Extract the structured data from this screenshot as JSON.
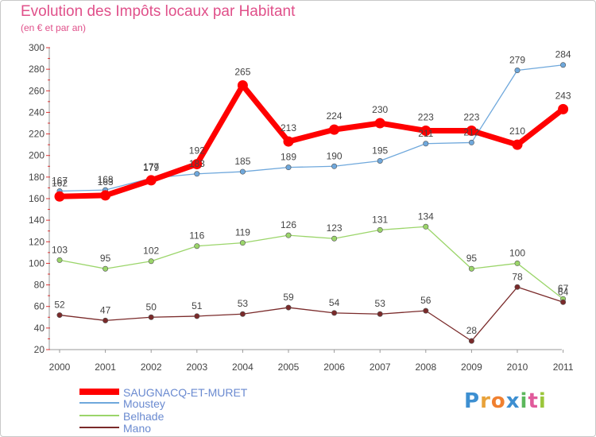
{
  "header": {
    "title": "Evolution des Impôts locaux par Habitant",
    "subtitle": "(en € et par an)"
  },
  "logo": {
    "text": "Proxiti",
    "colors": [
      "#3d8fd1",
      "#e8a23a",
      "#f08030",
      "#3d8fd1",
      "#5cb85c",
      "#e05a9b",
      "#9bc63b"
    ]
  },
  "chart_data": {
    "type": "line",
    "categories": [
      "2000",
      "2001",
      "2002",
      "2003",
      "2004",
      "2005",
      "2006",
      "2007",
      "2008",
      "2009",
      "2010",
      "2011"
    ],
    "ylim": [
      20,
      300
    ],
    "yticks": [
      20,
      40,
      60,
      80,
      100,
      120,
      140,
      160,
      180,
      200,
      220,
      240,
      260,
      280,
      300
    ],
    "grid": false,
    "legend_position": "bottom-left",
    "series": [
      {
        "name": "SAUGNACQ-ET-MURET",
        "color": "#ff0000",
        "bold": true,
        "values": [
          162,
          163,
          177,
          192,
          265,
          213,
          224,
          230,
          223,
          223,
          210,
          243
        ]
      },
      {
        "name": "Moustey",
        "color": "#6fa8dc",
        "values": [
          167,
          168,
          179,
          183,
          185,
          189,
          190,
          195,
          211,
          212,
          279,
          284
        ]
      },
      {
        "name": "Belhade",
        "color": "#9bd56a",
        "values": [
          103,
          95,
          102,
          116,
          119,
          126,
          123,
          131,
          134,
          95,
          100,
          67
        ]
      },
      {
        "name": "Mano",
        "color": "#7a2a2a",
        "values": [
          52,
          47,
          50,
          51,
          53,
          59,
          54,
          53,
          56,
          28,
          78,
          64
        ]
      }
    ]
  }
}
